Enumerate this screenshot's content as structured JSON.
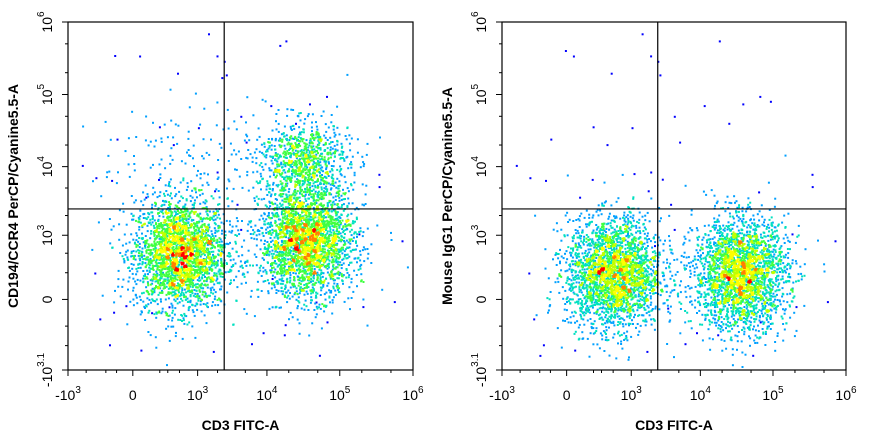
{
  "chart_data": [
    {
      "type": "scatter",
      "subtype": "flow-cytometry-density-dot-plot",
      "xlabel": "CD3 FITC-A",
      "ylabel": "CD194/CCR4 PerCP/Cyanine5.5-A",
      "x_scale": "biexponential",
      "y_scale": "biexponential",
      "xlim": [
        "-10^3",
        "10^6"
      ],
      "ylim": [
        "-10^3.1",
        "10^6"
      ],
      "x_ticks": [
        {
          "base": "-10",
          "exp": "3"
        },
        {
          "base": "0",
          "exp": ""
        },
        {
          "base": "10",
          "exp": "3"
        },
        {
          "base": "10",
          "exp": "4"
        },
        {
          "base": "10",
          "exp": "5"
        },
        {
          "base": "10",
          "exp": "6"
        }
      ],
      "y_ticks": [
        {
          "base": "-10",
          "exp": "3.1"
        },
        {
          "base": "0",
          "exp": ""
        },
        {
          "base": "10",
          "exp": "3"
        },
        {
          "base": "10",
          "exp": "4"
        },
        {
          "base": "10",
          "exp": "5"
        },
        {
          "base": "10",
          "exp": "6"
        }
      ],
      "quadrant_gate": {
        "x": 2500,
        "y": 2500
      },
      "populations": [
        {
          "x_center": 500,
          "y_center": 500,
          "density": "high"
        },
        {
          "x_center": 35000,
          "y_center": 800,
          "density": "high"
        },
        {
          "x_center": 30000,
          "y_center": 12000,
          "density": "medium"
        },
        {
          "x_center": 500,
          "y_center": 15000,
          "density": "low"
        }
      ]
    },
    {
      "type": "scatter",
      "subtype": "flow-cytometry-density-dot-plot",
      "xlabel": "CD3 FITC-A",
      "ylabel": "Mouse IgG1 PerCP/Cyanine5.5-A",
      "x_scale": "biexponential",
      "y_scale": "biexponential",
      "xlim": [
        "-10^3",
        "10^6"
      ],
      "ylim": [
        "-10^3.1",
        "10^6"
      ],
      "x_ticks": [
        {
          "base": "-10",
          "exp": "3"
        },
        {
          "base": "0",
          "exp": ""
        },
        {
          "base": "10",
          "exp": "3"
        },
        {
          "base": "10",
          "exp": "4"
        },
        {
          "base": "10",
          "exp": "5"
        },
        {
          "base": "10",
          "exp": "6"
        }
      ],
      "y_ticks": [
        {
          "base": "-10",
          "exp": "3.1"
        },
        {
          "base": "0",
          "exp": ""
        },
        {
          "base": "10",
          "exp": "3"
        },
        {
          "base": "10",
          "exp": "4"
        },
        {
          "base": "10",
          "exp": "5"
        },
        {
          "base": "10",
          "exp": "6"
        }
      ],
      "quadrant_gate": {
        "x": 2500,
        "y": 2500
      },
      "populations": [
        {
          "x_center": 500,
          "y_center": 200,
          "density": "high"
        },
        {
          "x_center": 35000,
          "y_center": 200,
          "density": "high"
        }
      ]
    }
  ],
  "colors": {
    "density_scale": [
      "#0000ff",
      "#00a0ff",
      "#00e0c0",
      "#40ff40",
      "#c0ff00",
      "#ffff00",
      "#ff8000",
      "#ff0000"
    ],
    "axis": "#000000",
    "gate": "#000000"
  }
}
